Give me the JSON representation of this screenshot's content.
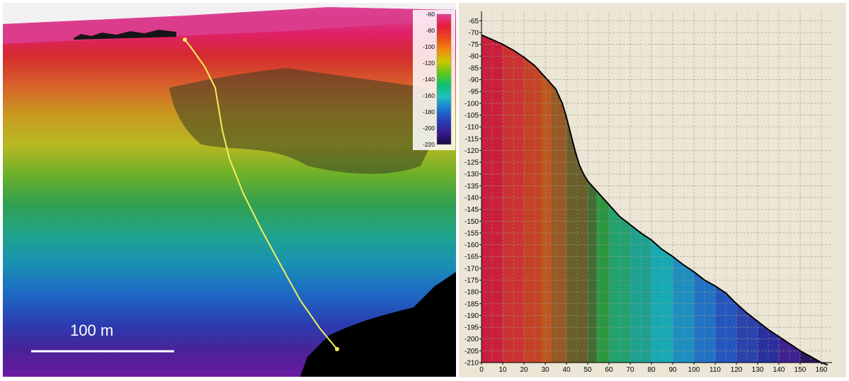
{
  "map_view": {
    "scale_bar_label": "100 m",
    "colorbar_ticks": [
      "-60",
      "-80",
      "-100",
      "-120",
      "-140",
      "-160",
      "-180",
      "-200",
      "-220"
    ],
    "colorbar_colors": [
      "#e0409a",
      "#e51c3a",
      "#ea4a1a",
      "#ee8a10",
      "#c8c800",
      "#5ec81e",
      "#10c070",
      "#20c0c0",
      "#1a78d0",
      "#2840b8",
      "#3a1a90",
      "#1a0a40"
    ],
    "profile_line_color": "#f3ee5a"
  },
  "chart_data": {
    "type": "area",
    "title": "",
    "xlabel": "",
    "ylabel": "",
    "x_ticks": [
      0,
      10,
      20,
      30,
      40,
      50,
      60,
      70,
      80,
      90,
      100,
      110,
      120,
      130,
      140,
      150,
      160
    ],
    "y_ticks": [
      -65,
      -70,
      -75,
      -80,
      -85,
      -90,
      -95,
      -100,
      -105,
      -110,
      -115,
      -120,
      -125,
      -130,
      -135,
      -140,
      -145,
      -150,
      -155,
      -160,
      -165,
      -170,
      -175,
      -180,
      -185,
      -190,
      -195,
      -200,
      -205,
      -210
    ],
    "xlim": [
      0,
      165
    ],
    "ylim": [
      -210,
      -61
    ],
    "grid": true,
    "series": [
      {
        "x": [
          0,
          5,
          10,
          15,
          20,
          25,
          30,
          35,
          38,
          40,
          42,
          44,
          46,
          48,
          50,
          52,
          55,
          60,
          65,
          70,
          75,
          80,
          85,
          90,
          95,
          100,
          105,
          110,
          115,
          120,
          125,
          130,
          135,
          140,
          145,
          150,
          155,
          160,
          163
        ],
        "y": [
          -71,
          -73,
          -75,
          -77.5,
          -80.5,
          -84,
          -89,
          -94,
          -100,
          -106,
          -113,
          -120,
          -126,
          -130,
          -133,
          -135,
          -138,
          -143,
          -148,
          -151.5,
          -155,
          -158,
          -162,
          -165,
          -168.5,
          -171.5,
          -175,
          -177.5,
          -180.5,
          -185,
          -189,
          -192.5,
          -196,
          -199,
          -202,
          -205,
          -207.5,
          -210,
          -211
        ]
      }
    ],
    "color_bands": [
      {
        "x0": 0,
        "x1": 10,
        "color": "#c8203c"
      },
      {
        "x0": 10,
        "x1": 20,
        "color": "#cd3232"
      },
      {
        "x0": 20,
        "x1": 28,
        "color": "#c64226"
      },
      {
        "x0": 28,
        "x1": 33,
        "color": "#be561f"
      },
      {
        "x0": 33,
        "x1": 40,
        "color": "#955a28"
      },
      {
        "x0": 40,
        "x1": 50,
        "color": "#6a5e2c"
      },
      {
        "x0": 50,
        "x1": 54,
        "color": "#426c34"
      },
      {
        "x0": 54,
        "x1": 60,
        "color": "#2e9540"
      },
      {
        "x0": 60,
        "x1": 70,
        "color": "#23a170"
      },
      {
        "x0": 70,
        "x1": 80,
        "color": "#1fa190"
      },
      {
        "x0": 80,
        "x1": 90,
        "color": "#17aab4"
      },
      {
        "x0": 90,
        "x1": 100,
        "color": "#1e8fbf"
      },
      {
        "x0": 100,
        "x1": 110,
        "color": "#2272c3"
      },
      {
        "x0": 110,
        "x1": 120,
        "color": "#2456bf"
      },
      {
        "x0": 120,
        "x1": 130,
        "color": "#2b43ad"
      },
      {
        "x0": 130,
        "x1": 140,
        "color": "#2a2f9f"
      },
      {
        "x0": 140,
        "x1": 150,
        "color": "#3f2190"
      },
      {
        "x0": 150,
        "x1": 165,
        "color": "#2a1660"
      }
    ]
  }
}
